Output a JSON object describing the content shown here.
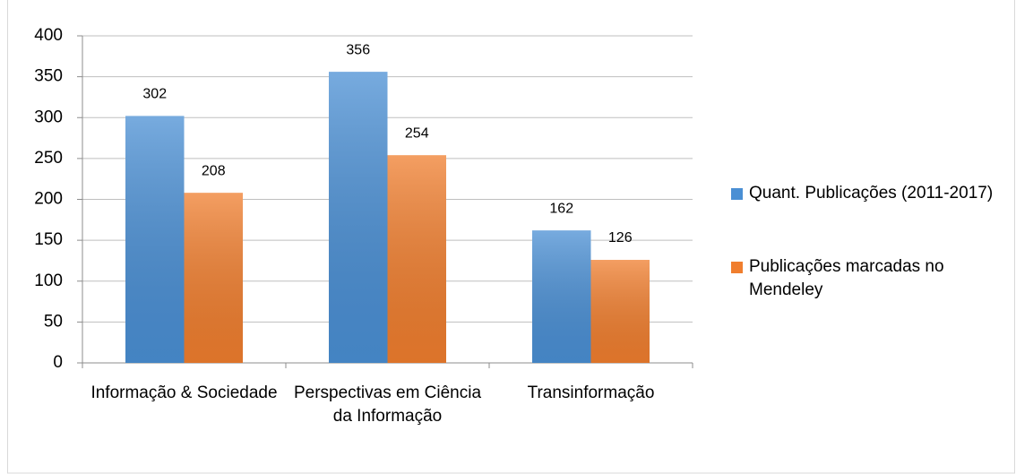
{
  "chart_data": {
    "type": "bar",
    "categories": [
      "Informação & Sociedade",
      "Perspectivas em Ciência da Informação",
      "Transinformação"
    ],
    "series": [
      {
        "name": "Quant. Publicações (2011-2017)",
        "color": "#4a8fd4",
        "values": [
          302,
          356,
          162
        ]
      },
      {
        "name": "Publicações marcadas no Mendeley",
        "color": "#f07e2e",
        "values": [
          208,
          254,
          126
        ]
      }
    ],
    "ylim": [
      0,
      400
    ],
    "yticks": [
      0,
      50,
      100,
      150,
      200,
      250,
      300,
      350,
      400
    ],
    "grid": true,
    "legend": "right"
  }
}
